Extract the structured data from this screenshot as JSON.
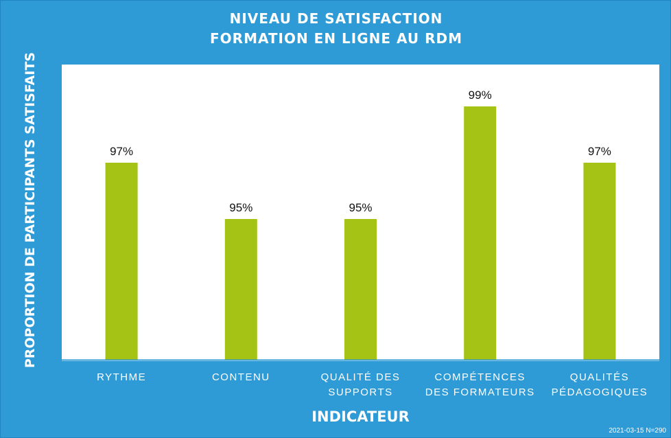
{
  "chart_data": {
    "type": "bar",
    "title_lines": [
      "NIVEAU DE SATISFACTION",
      "FORMATION EN LIGNE AU RDM"
    ],
    "ylabel": "PROPORTION DE PARTICIPANTS SATISFAITS",
    "xlabel": "INDICATEUR",
    "categories": [
      [
        "RYTHME"
      ],
      [
        "CONTENU"
      ],
      [
        "QUALITÉ DES",
        "SUPPORTS"
      ],
      [
        "COMPÉTENCES",
        "DES FORMATEURS"
      ],
      [
        "QUALITÉS",
        "PÉDAGOGIQUES"
      ]
    ],
    "values": [
      97,
      95,
      95,
      99,
      97
    ],
    "value_labels": [
      "97%",
      "95%",
      "95%",
      "99%",
      "97%"
    ],
    "ylim": [
      90,
      100
    ],
    "grid": false,
    "legend": "none",
    "colors": {
      "background": "#2e9ad6",
      "plot": "#ffffff",
      "bar": "#a4c314",
      "axis": "#2e9ad6"
    }
  },
  "footer": {
    "date": "2021-03-15",
    "sample": "N=290"
  }
}
